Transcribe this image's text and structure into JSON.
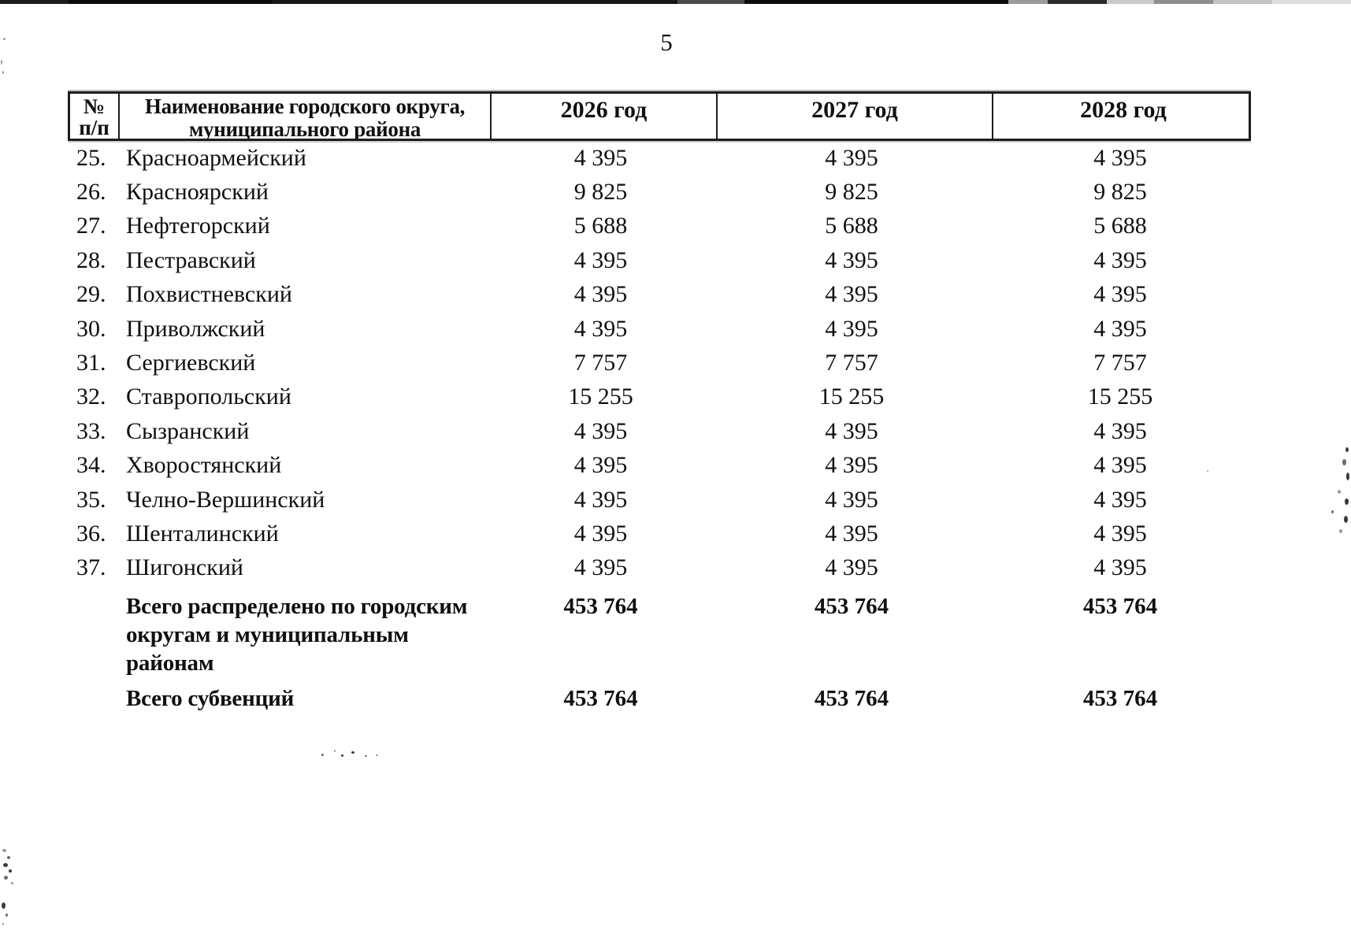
{
  "page": {
    "number": "5"
  },
  "table": {
    "header": {
      "num_line1": "№",
      "num_line2": "п/п",
      "name_line1": "Наименование городского округа,",
      "name_line2": "муниципального района",
      "year_2026": "2026 год",
      "year_2027": "2027 год",
      "year_2028": "2028 год"
    },
    "rows": [
      {
        "num": "25.",
        "name": "Красноармейский",
        "y2026": "4 395",
        "y2027": "4 395",
        "y2028": "4 395"
      },
      {
        "num": "26.",
        "name": "Красноярский",
        "y2026": "9 825",
        "y2027": "9 825",
        "y2028": "9 825"
      },
      {
        "num": "27.",
        "name": "Нефтегорский",
        "y2026": "5 688",
        "y2027": "5 688",
        "y2028": "5 688"
      },
      {
        "num": "28.",
        "name": "Пестравский",
        "y2026": "4 395",
        "y2027": "4 395",
        "y2028": "4 395"
      },
      {
        "num": "29.",
        "name": "Похвистневский",
        "y2026": "4 395",
        "y2027": "4 395",
        "y2028": "4 395"
      },
      {
        "num": "30.",
        "name": "Приволжский",
        "y2026": "4 395",
        "y2027": "4 395",
        "y2028": "4 395"
      },
      {
        "num": "31.",
        "name": "Сергиевский",
        "y2026": "7 757",
        "y2027": "7 757",
        "y2028": "7 757"
      },
      {
        "num": "32.",
        "name": "Ставропольский",
        "y2026": "15 255",
        "y2027": "15 255",
        "y2028": "15 255"
      },
      {
        "num": "33.",
        "name": "Сызранский",
        "y2026": "4 395",
        "y2027": "4 395",
        "y2028": "4 395"
      },
      {
        "num": "34.",
        "name": "Хворостянский",
        "y2026": "4 395",
        "y2027": "4 395",
        "y2028": "4 395"
      },
      {
        "num": "35.",
        "name": "Челно-Вершинский",
        "y2026": "4 395",
        "y2027": "4 395",
        "y2028": "4 395"
      },
      {
        "num": "36.",
        "name": "Шенталинский",
        "y2026": "4 395",
        "y2027": "4 395",
        "y2028": "4 395"
      },
      {
        "num": "37.",
        "name": "Шигонский",
        "y2026": "4 395",
        "y2027": "4 395",
        "y2028": "4 395"
      }
    ],
    "totals": [
      {
        "label_lines": [
          "Всего распределено по городским",
          "округам и муниципальным",
          "районам"
        ],
        "y2026": "453 764",
        "y2027": "453 764",
        "y2028": "453 764"
      },
      {
        "label_lines": [
          "Всего субвенций"
        ],
        "y2026": "453 764",
        "y2027": "453 764",
        "y2028": "453 764"
      }
    ]
  }
}
